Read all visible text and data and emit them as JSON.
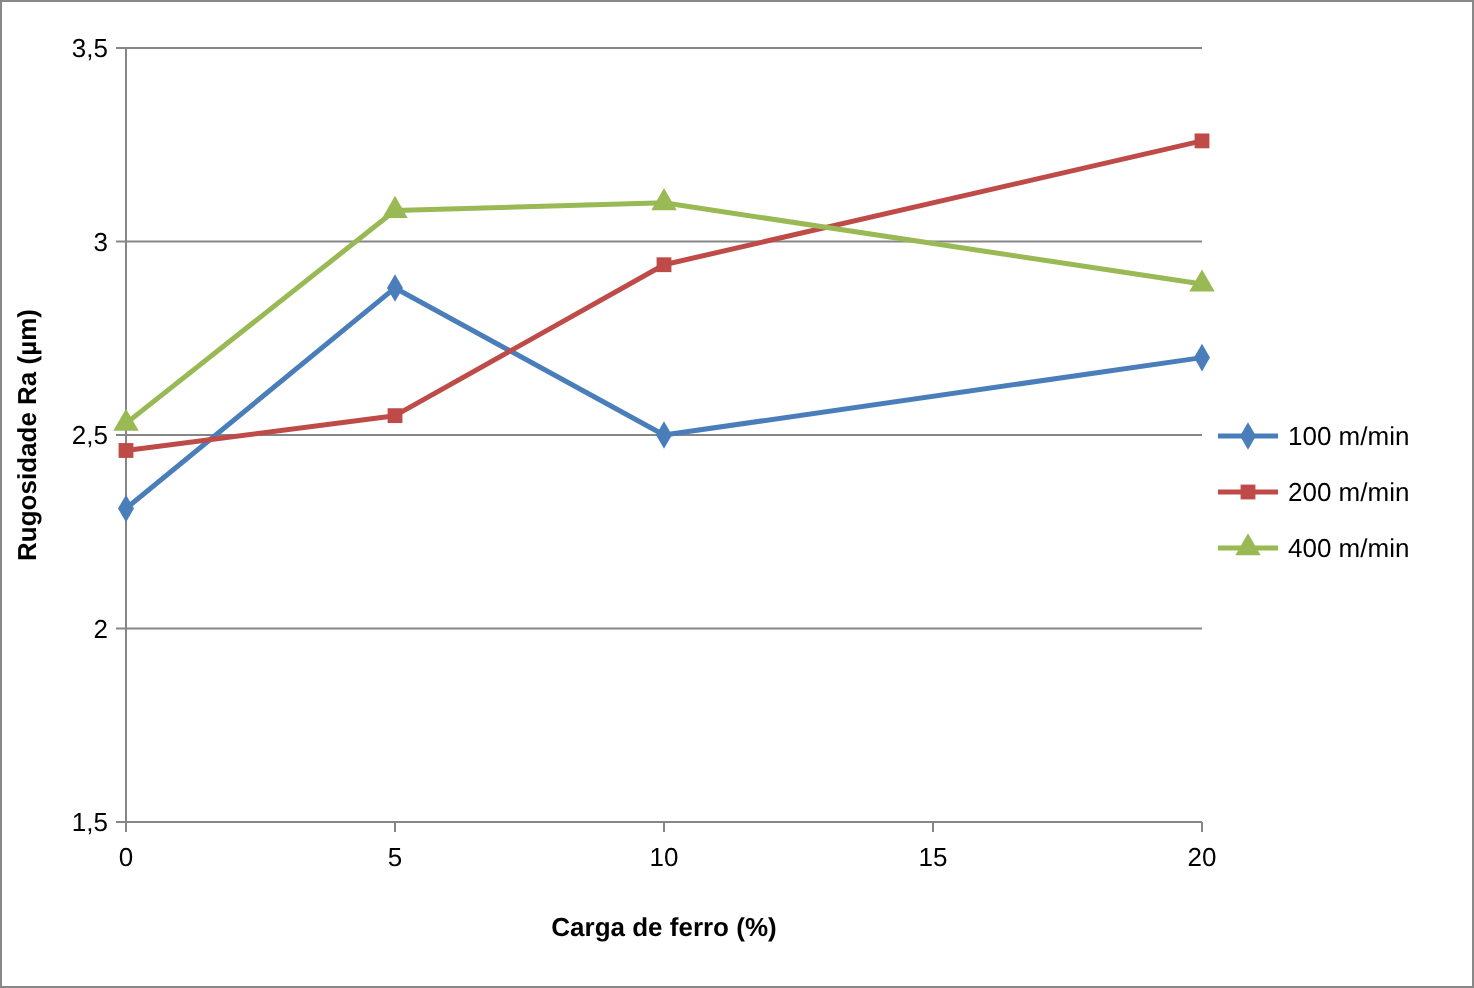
{
  "chart_data": {
    "type": "line",
    "xlabel": "Carga de ferro (%)",
    "ylabel": "Rugosidade Ra (µm)",
    "x": [
      0,
      5,
      10,
      20
    ],
    "series": [
      {
        "name": "100 m/min",
        "color": "#4a7ebb",
        "marker": "diamond",
        "values": [
          2.31,
          2.88,
          2.5,
          2.7
        ]
      },
      {
        "name": "200 m/min",
        "color": "#be4b48",
        "marker": "square",
        "values": [
          2.46,
          2.55,
          2.94,
          3.26
        ]
      },
      {
        "name": "400 m/min",
        "color": "#98b954",
        "marker": "triangle",
        "values": [
          2.53,
          3.08,
          3.1,
          2.89
        ]
      }
    ],
    "xlim": [
      0,
      20
    ],
    "xticks": [
      0,
      5,
      10,
      15,
      20
    ],
    "ylim": [
      1.5,
      3.5
    ],
    "yticks": [
      {
        "value": 1.5,
        "label": "1,5"
      },
      2,
      {
        "value": 2.5,
        "label": "2,5"
      },
      3,
      {
        "value": 3.5,
        "label": "3,5"
      }
    ],
    "grid": "y",
    "legend": "right"
  }
}
